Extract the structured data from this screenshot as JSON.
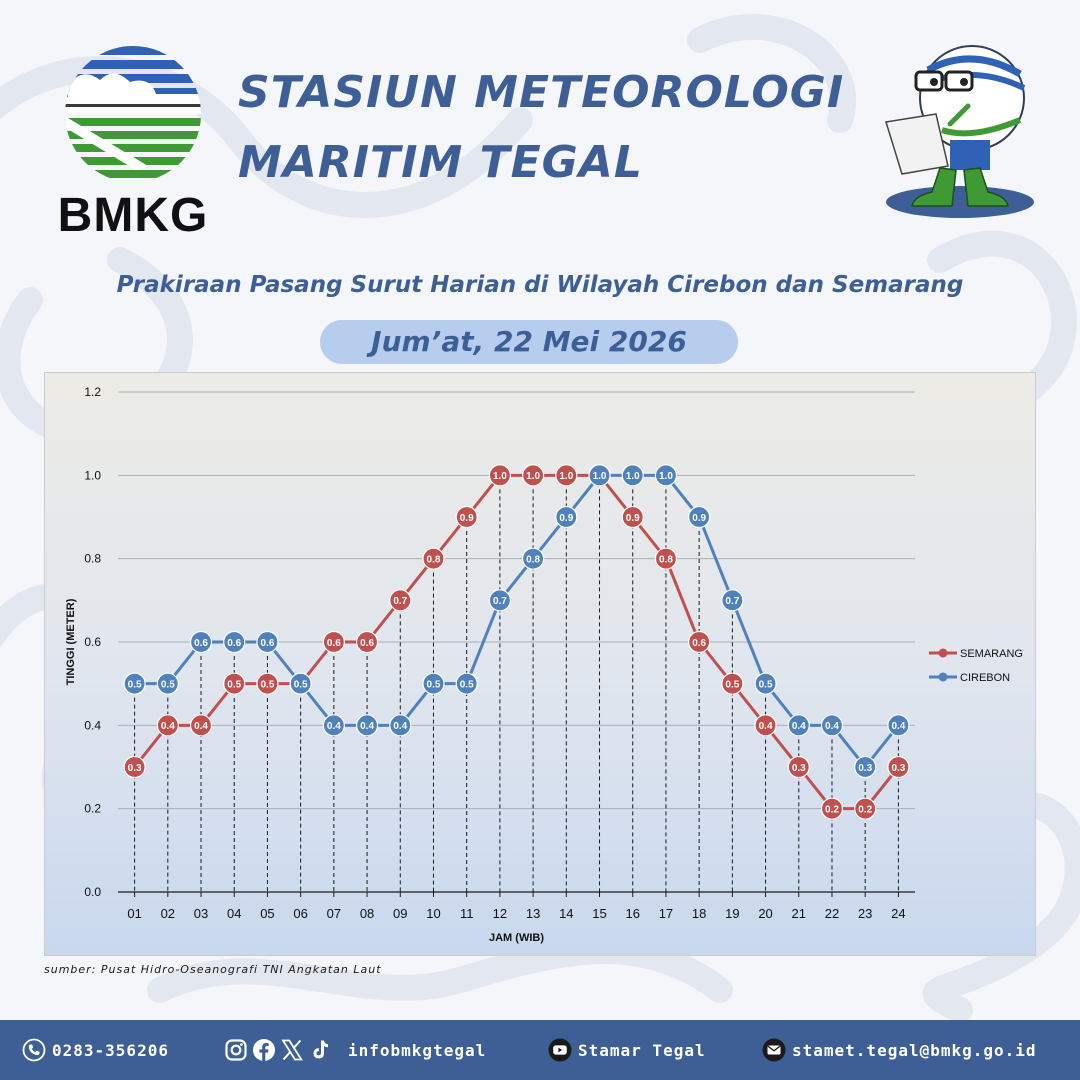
{
  "header": {
    "logo_text": "BMKG",
    "title_line1": "STASIUN METEOROLOGI",
    "title_line2": "MARITIM TEGAL"
  },
  "subtitle": "Prakiraan Pasang Surut Harian di Wilayah Cirebon dan Semarang",
  "date": "Jum’at, 22 Mei 2026",
  "source": "sumber: Pusat Hidro-Oseanografi TNI Angkatan Laut",
  "colors": {
    "brand_blue": "#3d5f95",
    "semarang": "#c0504d",
    "cirebon": "#4f81bd",
    "logo_green": "#3f9a35",
    "logo_blue": "#2f61b7"
  },
  "chart_data": {
    "type": "line",
    "xlabel": "JAM (WIB)",
    "ylabel": "TINGGI (METER)",
    "ylim": [
      0,
      1.2
    ],
    "yticks": [
      "0.0",
      "0.2",
      "0.4",
      "0.6",
      "0.8",
      "1.0",
      "1.2"
    ],
    "grid": true,
    "legend_position": "right",
    "categories": [
      "01",
      "02",
      "03",
      "04",
      "05",
      "06",
      "07",
      "08",
      "09",
      "10",
      "11",
      "12",
      "13",
      "14",
      "15",
      "16",
      "17",
      "18",
      "19",
      "20",
      "21",
      "22",
      "23",
      "24"
    ],
    "series": [
      {
        "name": "SEMARANG",
        "color": "#c0504d",
        "values": [
          0.3,
          0.4,
          0.4,
          0.5,
          0.5,
          0.5,
          0.6,
          0.6,
          0.7,
          0.8,
          0.9,
          1.0,
          1.0,
          1.0,
          1.0,
          0.9,
          0.8,
          0.6,
          0.5,
          0.4,
          0.3,
          0.2,
          0.2,
          0.3
        ]
      },
      {
        "name": "CIREBON",
        "color": "#4f81bd",
        "values": [
          0.5,
          0.5,
          0.6,
          0.6,
          0.6,
          0.5,
          0.4,
          0.4,
          0.4,
          0.5,
          0.5,
          0.7,
          0.8,
          0.9,
          1.0,
          1.0,
          1.0,
          0.9,
          0.7,
          0.5,
          0.4,
          0.4,
          0.3,
          0.4
        ]
      }
    ]
  },
  "footer": {
    "phone": "0283-356206",
    "social_handle": "infobmkgtegal",
    "youtube": "Stamar Tegal",
    "email": "stamet.tegal@bmkg.go.id",
    "icons": [
      "phone-icon",
      "instagram-icon",
      "facebook-icon",
      "x-icon",
      "tiktok-icon",
      "youtube-icon",
      "email-icon"
    ]
  }
}
